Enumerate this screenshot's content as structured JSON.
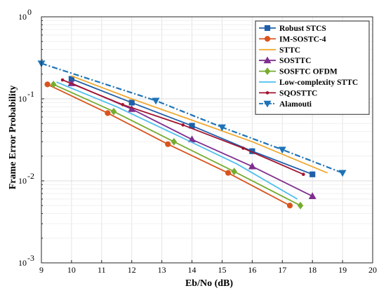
{
  "chart_data": {
    "type": "line",
    "xlabel": "Eb/No (dB)",
    "ylabel": "Frame Error Probability",
    "xlim": [
      9,
      20
    ],
    "ylim": [
      0.001,
      1
    ],
    "y_scale": "log",
    "grid": true,
    "legend_position": "top-right",
    "x_ticks": [
      "9",
      "10",
      "11",
      "12",
      "13",
      "14",
      "15",
      "16",
      "17",
      "18",
      "19",
      "20"
    ],
    "y_ticks": [
      {
        "value": 1,
        "label": "10",
        "exp": "0"
      },
      {
        "value": 0.1,
        "label": "10",
        "exp": "-1"
      },
      {
        "value": 0.01,
        "label": "10",
        "exp": "-2"
      },
      {
        "value": 0.001,
        "label": "10",
        "exp": "-3"
      }
    ],
    "series": [
      {
        "name": "Robust STCS",
        "color": "#1f5fa8",
        "marker": "square",
        "dash": "solid",
        "x": [
          10,
          12,
          14,
          16,
          18
        ],
        "y": [
          0.175,
          0.09,
          0.047,
          0.023,
          0.012
        ]
      },
      {
        "name": "IM-SOSTC-4",
        "color": "#d9541c",
        "marker": "circle",
        "dash": "solid",
        "x": [
          9.2,
          11.2,
          13.2,
          15.2,
          17.25
        ],
        "y": [
          0.15,
          0.067,
          0.028,
          0.0125,
          0.005
        ]
      },
      {
        "name": "STTC",
        "color": "#f0a830",
        "marker": "none",
        "dash": "solid",
        "x": [
          10,
          12,
          14,
          16,
          18.5
        ],
        "y": [
          0.19,
          0.1,
          0.055,
          0.03,
          0.0125
        ]
      },
      {
        "name": "SOSTTC",
        "color": "#7e2f8e",
        "marker": "triangle-up",
        "dash": "solid",
        "x": [
          10,
          12,
          14,
          16,
          18
        ],
        "y": [
          0.155,
          0.075,
          0.032,
          0.015,
          0.0065
        ]
      },
      {
        "name": "SOSFTC OFDM",
        "color": "#77ac30",
        "marker": "diamond",
        "dash": "solid",
        "x": [
          9.4,
          11.4,
          13.4,
          15.4,
          17.6
        ],
        "y": [
          0.15,
          0.07,
          0.03,
          0.013,
          0.005
        ]
      },
      {
        "name": "Low-complexity STTC",
        "color": "#4dbeee",
        "marker": "none",
        "dash": "solid",
        "x": [
          9.5,
          11.5,
          13.5,
          15.5,
          17.5
        ],
        "y": [
          0.16,
          0.08,
          0.036,
          0.016,
          0.006
        ]
      },
      {
        "name": "SQOSTTC",
        "color": "#a2142f",
        "marker": "point",
        "dash": "solid",
        "x": [
          9.7,
          11.7,
          13.7,
          15.7,
          17.7
        ],
        "y": [
          0.17,
          0.085,
          0.048,
          0.025,
          0.012
        ]
      },
      {
        "name": "Alamouti",
        "color": "#1e73b8",
        "marker": "triangle-down",
        "dash": "dashdot",
        "x": [
          9,
          12.8,
          15,
          17,
          19
        ],
        "y": [
          0.27,
          0.095,
          0.045,
          0.024,
          0.0125
        ]
      }
    ]
  }
}
